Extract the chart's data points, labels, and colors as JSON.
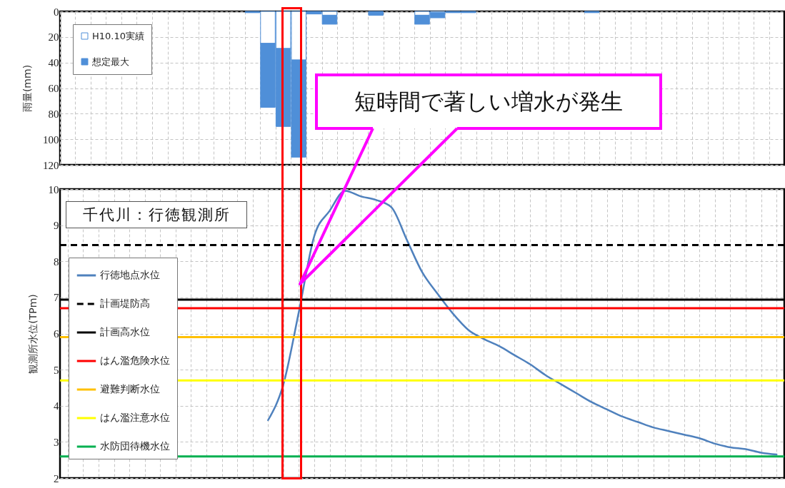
{
  "chart_data": [
    {
      "type": "bar",
      "stacked": true,
      "ylabel": "雨量(mm)",
      "ylim": [
        120,
        0
      ],
      "yticks": [
        0,
        20,
        40,
        60,
        80,
        100,
        120
      ],
      "grid": true,
      "tick_labels": "y",
      "legend": "top left",
      "categories": [
        null,
        null,
        null,
        null,
        null,
        null,
        null,
        null,
        null,
        null,
        null,
        null,
        null,
        null,
        null,
        null,
        null,
        null,
        null,
        null,
        null,
        null,
        null,
        null,
        null,
        null,
        null,
        null,
        null,
        null,
        null,
        null,
        null,
        null,
        null,
        null,
        null,
        null,
        null,
        null,
        null,
        null,
        null,
        null,
        null,
        null,
        null
      ],
      "series": [
        {
          "name": "H10.10実績",
          "color": "#ffffff",
          "values": [
            null,
            null,
            null,
            null,
            null,
            null,
            null,
            null,
            null,
            null,
            null,
            null,
            null,
            25,
            29,
            38,
            null,
            3,
            null,
            null,
            null,
            null,
            null,
            3,
            1,
            null,
            null,
            null,
            null,
            null,
            null,
            null,
            null,
            null,
            null,
            null,
            null,
            null,
            null,
            null,
            null,
            null,
            null,
            null,
            null,
            null,
            null
          ]
        },
        {
          "name": "想定最大",
          "color": "#4f8fd8",
          "values": [
            null,
            null,
            null,
            null,
            null,
            null,
            null,
            null,
            null,
            null,
            null,
            null,
            1,
            50,
            61,
            76,
            2,
            7,
            null,
            null,
            3,
            null,
            null,
            7,
            4,
            1,
            1,
            null,
            null,
            null,
            null,
            null,
            null,
            null,
            1,
            null,
            null,
            null,
            null,
            null,
            null,
            null,
            null,
            null,
            null,
            null,
            null
          ]
        }
      ]
    },
    {
      "type": "line",
      "ylabel": "観測所水位(TPm)",
      "ylim": [
        2,
        10
      ],
      "yticks": [
        2,
        3,
        4,
        5,
        6,
        7,
        8,
        9,
        10
      ],
      "grid": true,
      "tick_labels": "y",
      "legend": "left",
      "categories": [
        null,
        null,
        null,
        null,
        null,
        null,
        null,
        null,
        null,
        null,
        null,
        null,
        null,
        null,
        null,
        null,
        null,
        null,
        null,
        null,
        null,
        null,
        null,
        null,
        null,
        null,
        null,
        null,
        null,
        null,
        null,
        null,
        null,
        null,
        null,
        null,
        null,
        null,
        null,
        null,
        null,
        null,
        null,
        null,
        null,
        null,
        null
      ],
      "series": [
        {
          "name": "行徳地点水位",
          "color": "#4f81bd",
          "values": [
            null,
            null,
            null,
            null,
            null,
            null,
            null,
            null,
            null,
            null,
            null,
            null,
            null,
            3.6,
            4.6,
            6.6,
            8.7,
            9.4,
            9.95,
            9.8,
            9.7,
            9.5,
            8.6,
            7.7,
            7.1,
            6.55,
            6.1,
            5.85,
            5.65,
            5.4,
            5.15,
            4.85,
            4.6,
            4.35,
            4.1,
            3.9,
            3.7,
            3.55,
            3.4,
            3.3,
            3.2,
            3.1,
            2.95,
            2.85,
            2.8,
            2.7,
            2.65
          ]
        }
      ],
      "ref_lines": [
        {
          "axis": "y",
          "value": 8.45,
          "label": "計画堤防高",
          "color": "#000000",
          "line_style": "dashed"
        },
        {
          "axis": "y",
          "value": 6.94,
          "label": "計画高水位",
          "color": "#000000"
        },
        {
          "axis": "y",
          "value": 6.7,
          "label": "はん濫危険水位",
          "color": "#ff0000"
        },
        {
          "axis": "y",
          "value": 5.9,
          "label": "避難判断水位",
          "color": "#ffc000"
        },
        {
          "axis": "y",
          "value": 4.7,
          "label": "はん濫注意水位",
          "color": "#ffff00"
        },
        {
          "axis": "y",
          "value": 2.6,
          "label": "水防団待機水位",
          "color": "#00b050"
        }
      ],
      "annotations": [
        "短時間で著しい増水が発生",
        "千代川：行徳観測所"
      ]
    }
  ]
}
